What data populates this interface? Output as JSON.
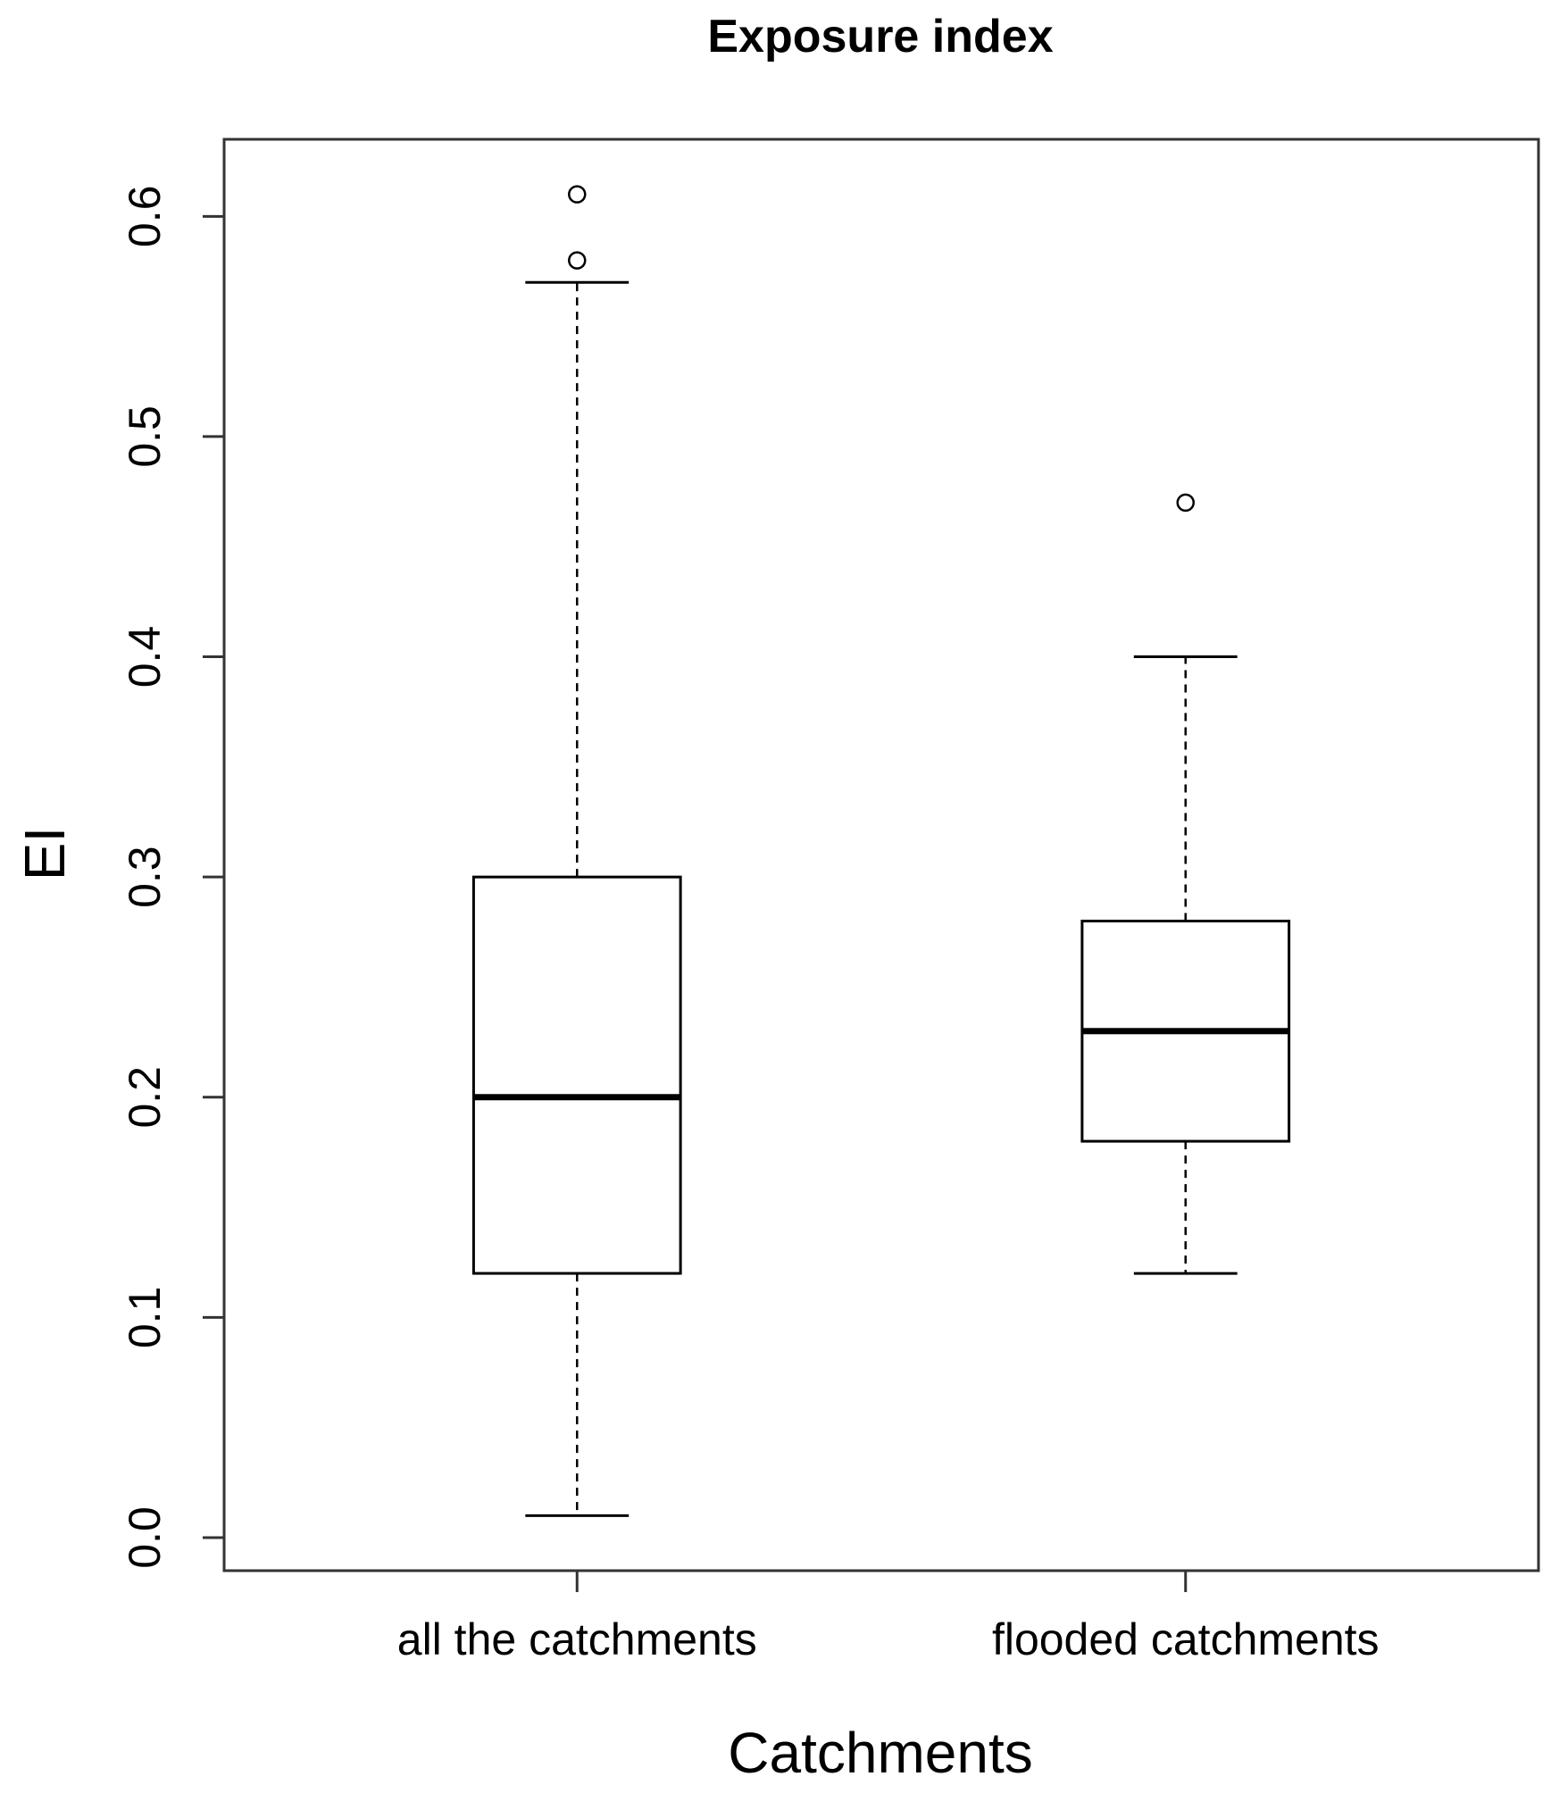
{
  "chart_data": {
    "type": "boxplot",
    "title": "Exposure index",
    "xlabel": "Catchments",
    "ylabel": "EI",
    "ylim": [
      -0.015,
      0.635
    ],
    "yticks": [
      0.0,
      0.1,
      0.2,
      0.3,
      0.4,
      0.5,
      0.6
    ],
    "ytick_labels": [
      "0.0",
      "0.1",
      "0.2",
      "0.3",
      "0.4",
      "0.5",
      "0.6"
    ],
    "grid": false,
    "legend": "none",
    "categories": [
      "all the catchments",
      "flooded catchments"
    ],
    "boxes": [
      {
        "category": "all the catchments",
        "whisker_low": 0.01,
        "q1": 0.12,
        "median": 0.2,
        "q3": 0.3,
        "whisker_high": 0.57,
        "outliers": [
          0.58,
          0.61
        ]
      },
      {
        "category": "flooded catchments",
        "whisker_low": 0.12,
        "q1": 0.18,
        "median": 0.23,
        "q3": 0.28,
        "whisker_high": 0.4,
        "outliers": [
          0.47
        ]
      }
    ]
  }
}
